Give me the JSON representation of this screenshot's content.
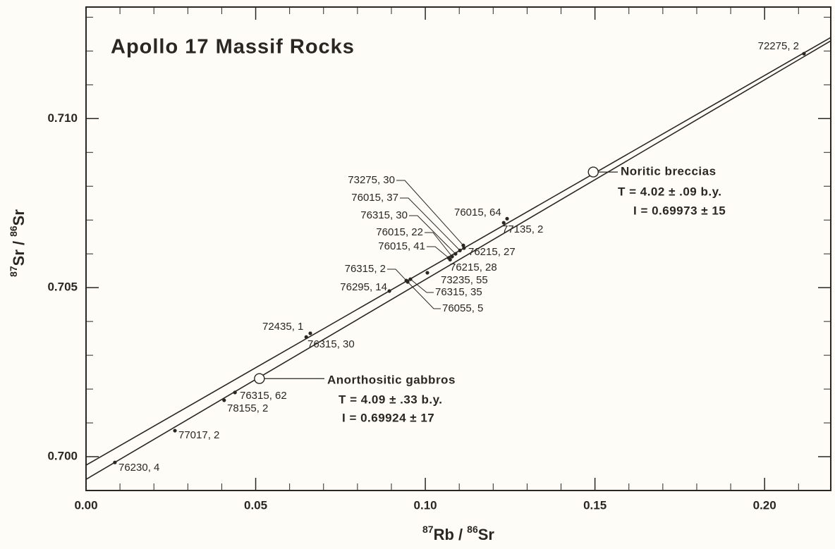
{
  "chart_data": {
    "type": "scatter",
    "title": "Apollo 17 Massif Rocks",
    "x_label": [
      "87",
      "Rb /",
      "86",
      "Sr"
    ],
    "y_label": [
      "87",
      "Sr /",
      "86",
      "Sr"
    ],
    "xlim": [
      0,
      0.2195
    ],
    "ylim": [
      0.699,
      0.7133
    ],
    "xticks": [
      {
        "value": 0,
        "label": "0.00"
      },
      0.05,
      {
        "value": 0.1,
        "label": "0.10"
      },
      0.15,
      {
        "value": 0.2,
        "label": "0.20"
      }
    ],
    "yticks": [
      {
        "value": 0.7,
        "label": "0.700"
      },
      0.705,
      {
        "value": 0.71,
        "label": "0.710"
      }
    ],
    "xminorticks": [
      0.01,
      0.02,
      0.03,
      0.04,
      0.06,
      0.07,
      0.08,
      0.09,
      0.11,
      0.12,
      0.13,
      0.14,
      0.16,
      0.17,
      0.18,
      0.19,
      0.21
    ],
    "yminorticks": [
      0.699,
      0.701,
      0.702,
      0.703,
      0.704,
      0.706,
      0.707,
      0.708,
      0.709,
      0.711,
      0.712,
      0.713
    ],
    "color": "#2b2622",
    "points": {
      "labels": [
        "72275, 2",
        "76015, 64",
        "77135, 2",
        "73275, 30",
        "76015, 37",
        "76315, 30",
        "76015, 22",
        "76015, 41",
        "76215, 27",
        "76215, 28",
        "73235, 55",
        "76315, 2",
        "76315, 35",
        "76055, 5",
        "76295, 14",
        "72435, 1",
        "76315, 30",
        "76315, 62",
        "78155, 2",
        "77017, 2",
        "76230, 4"
      ],
      "x": [
        0.2116,
        0.1241,
        0.1231,
        0.1112,
        0.1102,
        0.1089,
        0.1079,
        0.1069,
        0.1114,
        0.1073,
        0.1006,
        0.0944,
        0.0956,
        0.0948,
        0.0894,
        0.0649,
        0.0661,
        0.0439,
        0.0407,
        0.0262,
        0.0085
      ],
      "y": [
        0.71192,
        0.70704,
        0.70692,
        0.70625,
        0.7061,
        0.706,
        0.70592,
        0.70588,
        0.70617,
        0.70583,
        0.70544,
        0.70521,
        0.70525,
        0.70517,
        0.7049,
        0.70354,
        0.70365,
        0.7019,
        0.70167,
        0.70077,
        0.69983
      ]
    },
    "isochrons": [
      {
        "name": "Noritic breccias",
        "age": "T = 4.02 ± .09 b.y.",
        "initial": "I = 0.69973 ± 15",
        "x": [
          0,
          0.2195
        ],
        "values": [
          0.69975,
          0.7124
        ],
        "point_x": 0.1495,
        "point_y": 0.70842
      },
      {
        "name": "Anorthositic gabbros",
        "age": "T = 4.09 ± .33 b.y.",
        "initial": "I = 0.69924 ± 17",
        "x": [
          0,
          0.2195
        ],
        "values": [
          0.69933,
          0.7123
        ],
        "point_x": 0.0511,
        "point_y": 0.70231
      }
    ]
  }
}
